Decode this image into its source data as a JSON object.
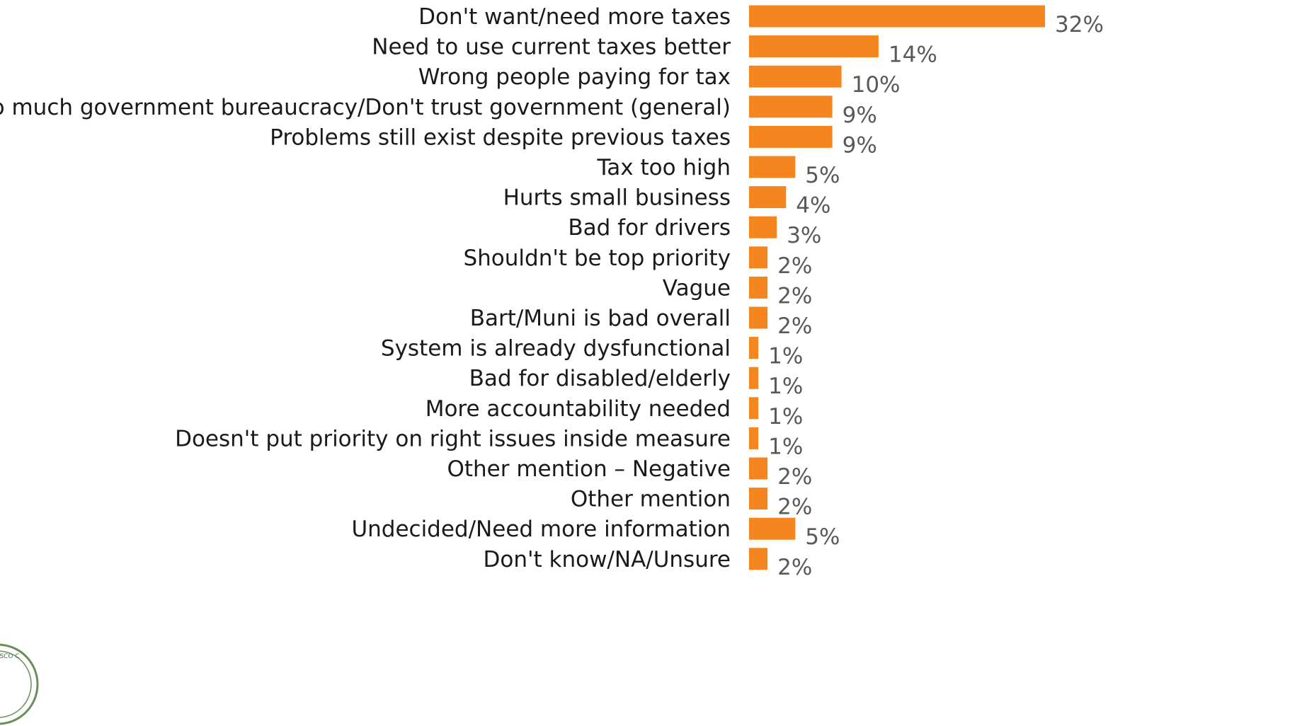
{
  "chart_data": {
    "type": "bar",
    "orientation": "horizontal",
    "title": "",
    "xlabel": "",
    "ylabel": "",
    "xlim": [
      0,
      32
    ],
    "grid": false,
    "legend": "none",
    "bar_color": "#F5861F",
    "value_format": "{v}%",
    "categories": [
      "Don't want/need more taxes",
      "Need to use current taxes better",
      "Wrong people paying for tax",
      "Too much government bureaucracy/Don't trust government (general)",
      "Problems still exist despite previous taxes",
      "Tax too high",
      "Hurts small business",
      "Bad for drivers",
      "Shouldn't be top priority",
      "Vague",
      "Bart/Muni is bad overall",
      "System is already dysfunctional",
      "Bad for disabled/elderly",
      "More accountability needed",
      "Doesn't put priority on right issues inside measure",
      "Other mention – Negative",
      "Other mention",
      "Undecided/Need more information",
      "Don't know/NA/Unsure"
    ],
    "values": [
      32,
      14,
      10,
      9,
      9,
      5,
      4,
      3,
      2,
      2,
      2,
      1,
      1,
      1,
      1,
      2,
      2,
      5,
      2
    ]
  },
  "logo": {
    "icon": "seal-icon",
    "text": "FRANCISCO C",
    "stroke_color": "#6b8f5a"
  }
}
